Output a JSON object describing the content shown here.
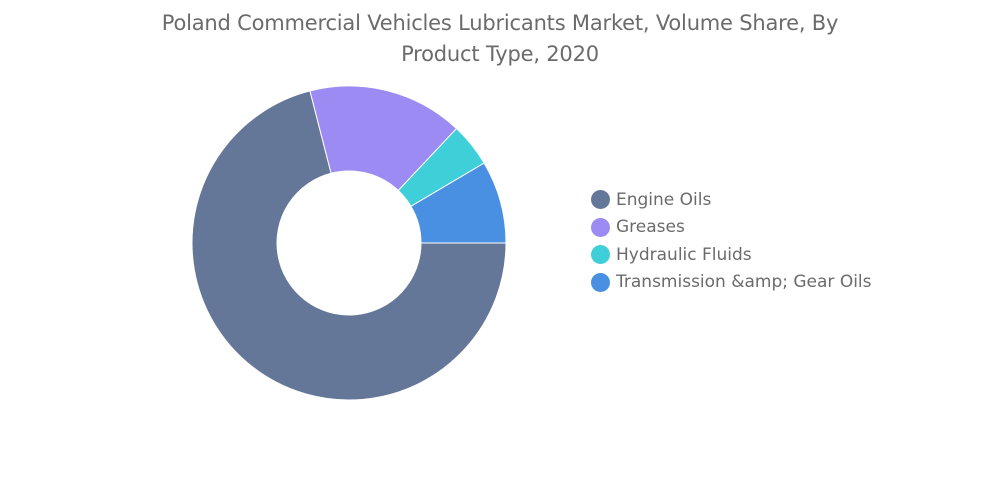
{
  "chart_data": {
    "type": "pie",
    "title": "Poland Commercial Vehicles Lubricants Market, Volume Share, By Product Type, 2020",
    "categories": [
      "Engine Oils",
      "Greases",
      "Hydraulic Fluids",
      "Transmission &amp; Gear Oils"
    ],
    "values": [
      71,
      16,
      4.5,
      8.5
    ],
    "colors": [
      "#657798",
      "#9b8bf2",
      "#3ecfd8",
      "#4a90e2"
    ],
    "donut": true,
    "legend_position": "right"
  }
}
